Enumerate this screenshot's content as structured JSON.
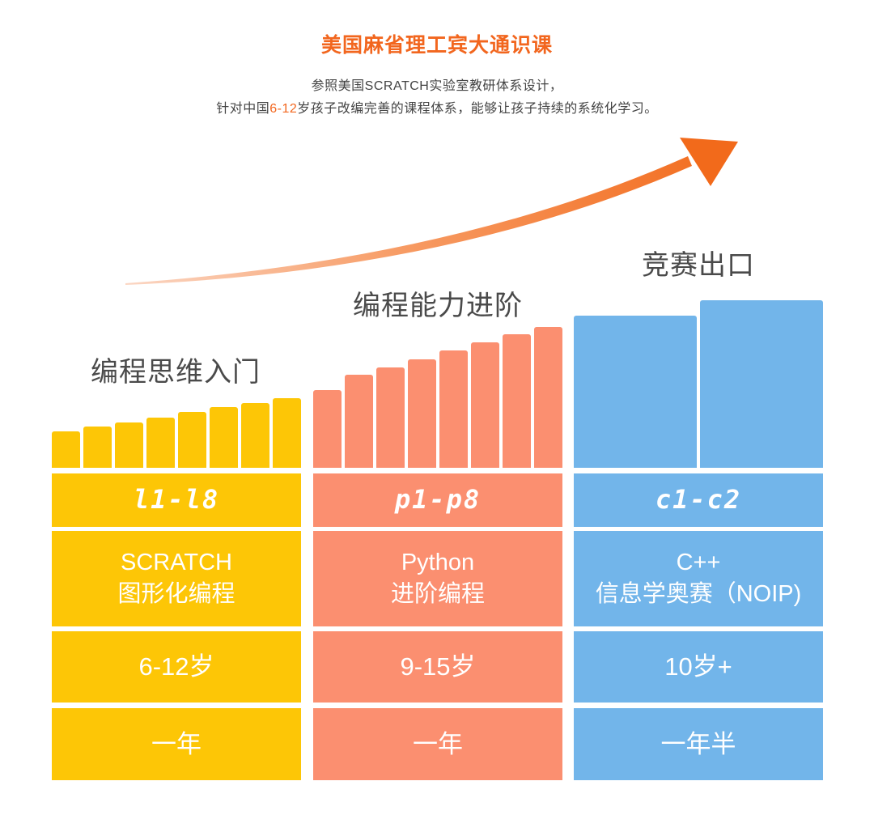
{
  "header": {
    "title": "美国麻省理工宾大通识课",
    "line1": "参照美国SCRATCH实验室教研体系设计，",
    "line2_before": "针对中国",
    "line2_highlight": "6-12",
    "line2_after": "岁孩子改编完善的课程体系，能够让孩子持续的系统化学习。"
  },
  "colors": {
    "accent": "#f2661e",
    "yellow": "#fdc606",
    "orange": "#fb8f70",
    "blue": "#72b5ea"
  },
  "stages": [
    {
      "title": "编程思维入门",
      "code": "l1-l8",
      "lang_line1": "SCRATCH",
      "lang_line2": "图形化编程",
      "age": "6-12岁",
      "duration": "一年"
    },
    {
      "title": "编程能力进阶",
      "code": "p1-p8",
      "lang_line1": "Python",
      "lang_line2": "进阶编程",
      "age": "9-15岁",
      "duration": "一年"
    },
    {
      "title": "竞赛出口",
      "code": "c1-c2",
      "lang_line1": "C++",
      "lang_line2": "信息学奥赛（NOIP)",
      "age": "10岁+",
      "duration": "一年半"
    }
  ]
}
